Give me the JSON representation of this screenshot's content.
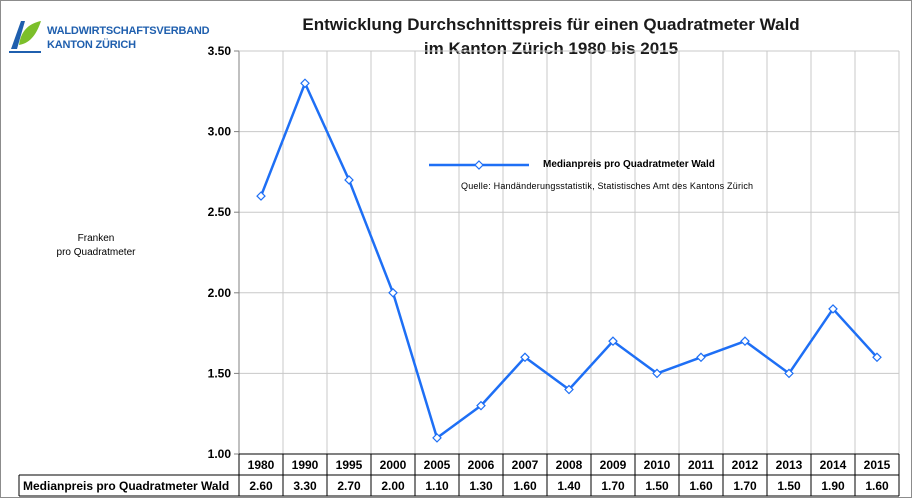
{
  "logo": {
    "line1": "WALDWIRTSCHAFTSVERBAND",
    "line2": "KANTON ZÜRICH"
  },
  "title_line1": "Entwicklung Durchschnittspreis für einen Quadratmeter Wald",
  "title_line2": "im Kanton Zürich 1980 bis 2015",
  "ylabel_line1": "Franken",
  "ylabel_line2": "pro Quadratmeter",
  "source": "Quelle: Handänderungsstatistik, Statistisches Amt des Kantons Zürich",
  "colors": {
    "line": "#1e6ff5",
    "marker_fill": "#ffffff",
    "grid": "#c8c8c8",
    "axis": "#808080"
  },
  "chart_data": {
    "type": "line",
    "title": "Entwicklung Durchschnittspreis für einen Quadratmeter Wald im Kanton Zürich 1980 bis 2015",
    "xlabel": "",
    "ylabel": "Franken pro Quadratmeter",
    "ylim": [
      1.0,
      3.5
    ],
    "yticks": [
      "1.00",
      "1.50",
      "2.00",
      "2.50",
      "3.00",
      "3.50"
    ],
    "grid": true,
    "legend_position": "top-right",
    "categories": [
      "1980",
      "1990",
      "1995",
      "2000",
      "2005",
      "2006",
      "2007",
      "2008",
      "2009",
      "2010",
      "2011",
      "2012",
      "2013",
      "2014",
      "2015"
    ],
    "series": [
      {
        "name": "Medianpreis pro Quadratmeter Wald",
        "values": [
          2.6,
          3.3,
          2.7,
          2.0,
          1.1,
          1.3,
          1.6,
          1.4,
          1.7,
          1.5,
          1.6,
          1.7,
          1.5,
          1.9,
          1.6
        ],
        "labels": [
          "2.60",
          "3.30",
          "2.70",
          "2.00",
          "1.10",
          "1.30",
          "1.60",
          "1.40",
          "1.70",
          "1.50",
          "1.60",
          "1.70",
          "1.50",
          "1.90",
          "1.60"
        ]
      }
    ],
    "table_row_label": "Medianpreis pro Quadratmeter Wald"
  }
}
